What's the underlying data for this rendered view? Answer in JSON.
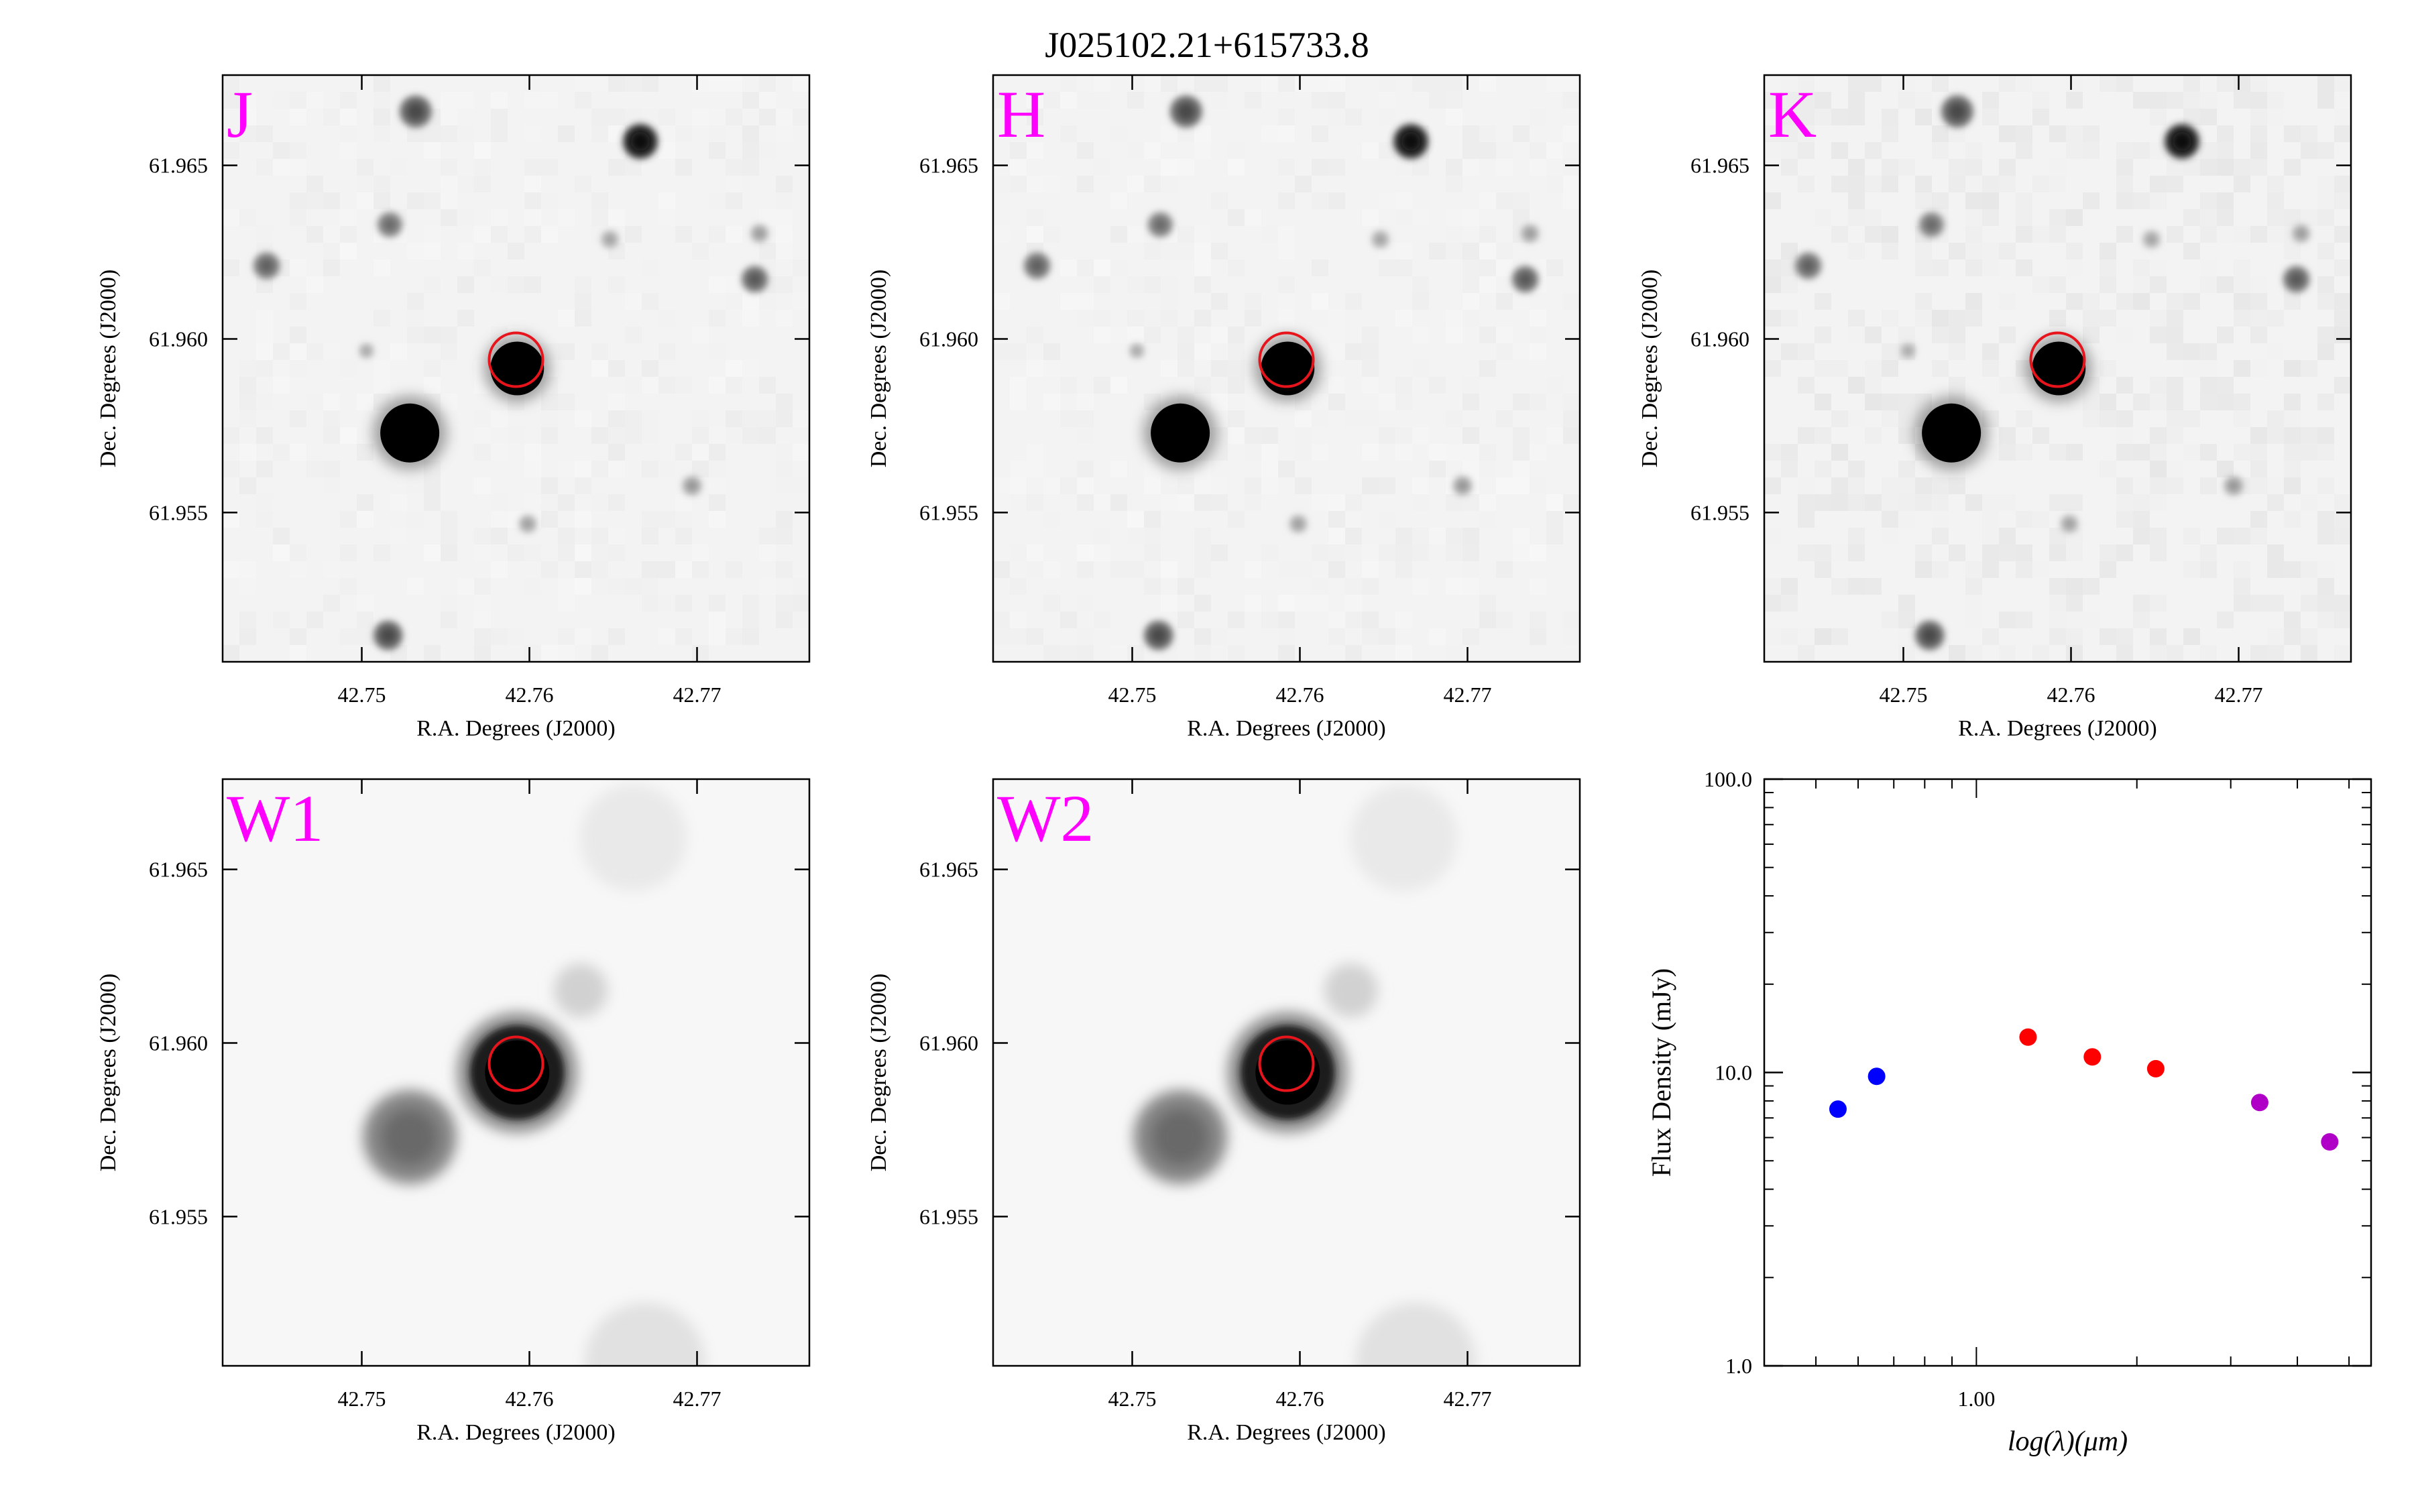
{
  "figure": {
    "title": "J025102.21+615733.8"
  },
  "cutouts": [
    {
      "band": "J",
      "kind": "2mass",
      "xlabel": "R.A. Degrees (J2000)",
      "ylabel": "Dec. Degrees (J2000)",
      "xticks": [
        "42.75",
        "42.76",
        "42.77"
      ],
      "yticks": [
        "61.965",
        "61.960",
        "61.955"
      ],
      "target": {
        "ra": 42.7592,
        "dec": 61.9594
      },
      "label_color": "#ff00ff",
      "marker_color": "#e8141c"
    },
    {
      "band": "H",
      "kind": "2mass",
      "xlabel": "R.A. Degrees (J2000)",
      "ylabel": "Dec. Degrees (J2000)",
      "xticks": [
        "42.75",
        "42.76",
        "42.77"
      ],
      "yticks": [
        "61.965",
        "61.960",
        "61.955"
      ],
      "target": {
        "ra": 42.7592,
        "dec": 61.9594
      },
      "label_color": "#ff00ff",
      "marker_color": "#e8141c"
    },
    {
      "band": "K",
      "kind": "2mass",
      "xlabel": "R.A. Degrees (J2000)",
      "ylabel": "Dec. Degrees (J2000)",
      "xticks": [
        "42.75",
        "42.76",
        "42.77"
      ],
      "yticks": [
        "61.965",
        "61.960",
        "61.955"
      ],
      "target": {
        "ra": 42.7592,
        "dec": 61.9594
      },
      "label_color": "#ff00ff",
      "marker_color": "#e8141c"
    },
    {
      "band": "W1",
      "kind": "wise",
      "xlabel": "R.A. Degrees (J2000)",
      "ylabel": "Dec. Degrees (J2000)",
      "xticks": [
        "42.75",
        "42.76",
        "42.77"
      ],
      "yticks": [
        "61.965",
        "61.960",
        "61.955"
      ],
      "target": {
        "ra": 42.7592,
        "dec": 61.9594
      },
      "label_color": "#ff00ff",
      "marker_color": "#e8141c"
    },
    {
      "band": "W2",
      "kind": "wise",
      "xlabel": "R.A. Degrees (J2000)",
      "ylabel": "Dec. Degrees (J2000)",
      "xticks": [
        "42.75",
        "42.76",
        "42.77"
      ],
      "yticks": [
        "61.965",
        "61.960",
        "61.955"
      ],
      "target": {
        "ra": 42.7592,
        "dec": 61.9594
      },
      "label_color": "#ff00ff",
      "marker_color": "#e8141c"
    }
  ],
  "cutout_axes": {
    "ra_range": [
      42.7417,
      42.7767
    ],
    "dec_range": [
      61.9507,
      61.9676
    ],
    "ra_tick_values": [
      42.75,
      42.76,
      42.77
    ],
    "dec_tick_values": [
      61.965,
      61.96,
      61.955
    ],
    "image_scale": "grayscale inverted"
  },
  "chart_data": {
    "type": "scatter",
    "title": "",
    "xlabel": "log(λ)(μm)",
    "ylabel": "Flux Density (mJy)",
    "xscale": "log",
    "yscale": "log",
    "xlim": [
      0.4,
      5.5
    ],
    "ylim": [
      1.0,
      100.0
    ],
    "xticks": [
      {
        "value": 1.0,
        "label": "1.00"
      }
    ],
    "yticks": [
      {
        "value": 1.0,
        "label": "1.0"
      },
      {
        "value": 10.0,
        "label": "10.0"
      },
      {
        "value": 100.0,
        "label": "100.0"
      }
    ],
    "grid": false,
    "legend": "none",
    "series": [
      {
        "color": "#0000ff",
        "x": [
          0.55,
          0.65
        ],
        "y": [
          7.5,
          9.7
        ]
      },
      {
        "color": "#ff0000",
        "x": [
          1.25,
          1.65,
          2.17
        ],
        "y": [
          13.2,
          11.3,
          10.3
        ]
      },
      {
        "color": "#b000c8",
        "x": [
          3.4,
          4.6
        ],
        "y": [
          7.9,
          5.8
        ]
      }
    ]
  }
}
